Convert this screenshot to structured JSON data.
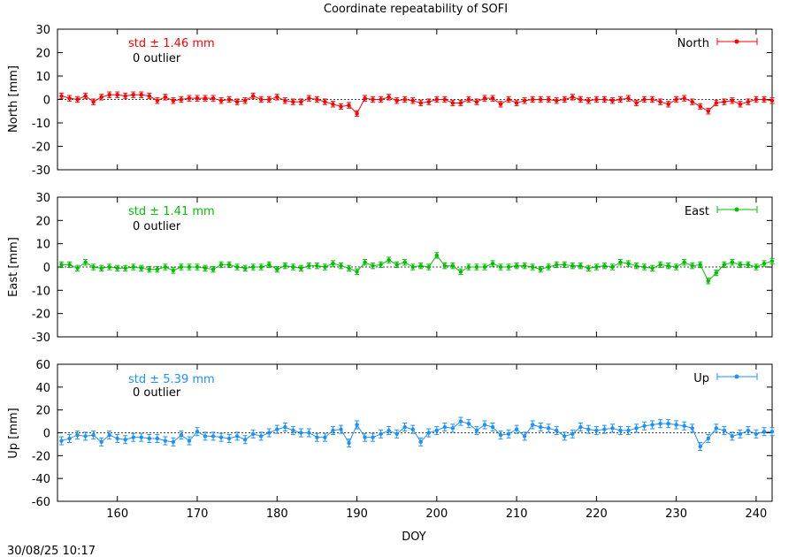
{
  "title": "Coordinate repeatability of SOFI",
  "timestamp": "30/08/25 10:17",
  "chart_data": [
    {
      "type": "line",
      "name": "north",
      "ylabel": "North [mm]",
      "xlabel": "",
      "legend": "North",
      "legend_position": "top-right",
      "color": "#ff0000",
      "std_label": "std ± 1.46 mm",
      "outlier_label": "0 outlier",
      "xlim": [
        152.5,
        242
      ],
      "ylim": [
        -30,
        30
      ],
      "yticks": [
        -30,
        -20,
        -10,
        0,
        10,
        20,
        30
      ],
      "xticks": [
        160,
        170,
        180,
        190,
        200,
        210,
        220,
        230,
        240
      ],
      "grid": false,
      "zero_line": true,
      "x": [
        153,
        154,
        155,
        156,
        157,
        158,
        159,
        160,
        161,
        162,
        163,
        164,
        165,
        166,
        167,
        168,
        169,
        170,
        171,
        172,
        173,
        174,
        175,
        176,
        177,
        178,
        179,
        180,
        181,
        182,
        183,
        184,
        185,
        186,
        187,
        188,
        189,
        190,
        191,
        192,
        193,
        194,
        195,
        196,
        197,
        198,
        199,
        200,
        201,
        202,
        203,
        204,
        205,
        206,
        207,
        208,
        209,
        210,
        211,
        212,
        213,
        214,
        215,
        216,
        217,
        218,
        219,
        220,
        221,
        222,
        223,
        224,
        225,
        226,
        227,
        228,
        229,
        230,
        231,
        232,
        233,
        234,
        235,
        236,
        237,
        238,
        239,
        240,
        241,
        242
      ],
      "y": [
        1.5,
        0.5,
        0,
        1.5,
        -1,
        1,
        2,
        2,
        1.5,
        2,
        2,
        1.5,
        -0.5,
        1,
        -0.5,
        0,
        0.5,
        0.5,
        0.5,
        0.5,
        -0.5,
        0,
        -1,
        -0.5,
        1.5,
        0,
        0,
        1,
        -0.5,
        -1,
        -1,
        0.5,
        0,
        -1,
        -2,
        -3,
        -2.5,
        -6,
        0.5,
        0,
        0,
        1,
        -0.5,
        0,
        -0.5,
        -1.5,
        -1,
        0,
        0,
        -1.5,
        -1.5,
        0,
        -1,
        0.5,
        0.5,
        -2,
        0,
        -1.5,
        -0.5,
        0,
        0,
        0,
        -0.5,
        0,
        1,
        0,
        -0.5,
        0,
        0,
        -0.5,
        0,
        0.5,
        -1.5,
        0,
        0,
        -1,
        -2,
        0,
        0.5,
        -1,
        -3,
        -5,
        -1.5,
        -1,
        -0.5,
        -2,
        -1,
        0,
        0,
        -0.5
      ],
      "err": 1.2
    },
    {
      "type": "line",
      "name": "east",
      "ylabel": "East [mm]",
      "xlabel": "",
      "legend": "East",
      "legend_position": "top-right",
      "color": "#00c000",
      "std_label": "std ± 1.41 mm",
      "outlier_label": "0 outlier",
      "xlim": [
        152.5,
        242
      ],
      "ylim": [
        -30,
        30
      ],
      "yticks": [
        -30,
        -20,
        -10,
        0,
        10,
        20,
        30
      ],
      "xticks": [
        160,
        170,
        180,
        190,
        200,
        210,
        220,
        230,
        240
      ],
      "grid": false,
      "zero_line": true,
      "x": [
        153,
        154,
        155,
        156,
        157,
        158,
        159,
        160,
        161,
        162,
        163,
        164,
        165,
        166,
        167,
        168,
        169,
        170,
        171,
        172,
        173,
        174,
        175,
        176,
        177,
        178,
        179,
        180,
        181,
        182,
        183,
        184,
        185,
        186,
        187,
        188,
        189,
        190,
        191,
        192,
        193,
        194,
        195,
        196,
        197,
        198,
        199,
        200,
        201,
        202,
        203,
        204,
        205,
        206,
        207,
        208,
        209,
        210,
        211,
        212,
        213,
        214,
        215,
        216,
        217,
        218,
        219,
        220,
        221,
        222,
        223,
        224,
        225,
        226,
        227,
        228,
        229,
        230,
        231,
        232,
        233,
        234,
        235,
        236,
        237,
        238,
        239,
        240,
        241,
        242
      ],
      "y": [
        1,
        1,
        -0.5,
        2,
        0,
        -0.5,
        0,
        -0.5,
        -0.5,
        0,
        -0.5,
        -1,
        -1,
        0,
        -1.5,
        0,
        0,
        0,
        -0.5,
        -1,
        1,
        1,
        0,
        -0.5,
        0,
        0,
        1,
        -1,
        0.5,
        0,
        -0.5,
        0.5,
        0.5,
        0,
        1.5,
        0.5,
        -0.5,
        -2,
        2,
        0.5,
        1,
        3,
        1,
        2,
        0,
        0.5,
        0,
        5,
        0.5,
        0.5,
        -2,
        0,
        0,
        0,
        1.5,
        0,
        0,
        0.5,
        0.5,
        0,
        -1,
        0,
        1,
        1,
        0.5,
        0.5,
        -0.5,
        0,
        0.5,
        0,
        2,
        1.5,
        0.5,
        0,
        -0.5,
        1,
        0.5,
        0,
        2,
        0.5,
        1,
        -6,
        -2.5,
        1,
        2,
        1,
        1,
        0,
        1.5,
        2.5
      ],
      "err": 1.2
    },
    {
      "type": "line",
      "name": "up",
      "ylabel": "Up [mm]",
      "xlabel": "DOY",
      "legend": "Up",
      "legend_position": "top-right",
      "color": "#1e90ff",
      "std_label": "std ± 5.39 mm",
      "outlier_label": "0 outlier",
      "xlim": [
        152.5,
        242
      ],
      "ylim": [
        -60,
        60
      ],
      "yticks": [
        -60,
        -40,
        -20,
        0,
        20,
        40,
        60
      ],
      "xticks": [
        160,
        170,
        180,
        190,
        200,
        210,
        220,
        230,
        240
      ],
      "grid": false,
      "zero_line": true,
      "x": [
        153,
        154,
        155,
        156,
        157,
        158,
        159,
        160,
        161,
        162,
        163,
        164,
        165,
        166,
        167,
        168,
        169,
        170,
        171,
        172,
        173,
        174,
        175,
        176,
        177,
        178,
        179,
        180,
        181,
        182,
        183,
        184,
        185,
        186,
        187,
        188,
        189,
        190,
        191,
        192,
        193,
        194,
        195,
        196,
        197,
        198,
        199,
        200,
        201,
        202,
        203,
        204,
        205,
        206,
        207,
        208,
        209,
        210,
        211,
        212,
        213,
        214,
        215,
        216,
        217,
        218,
        219,
        220,
        221,
        222,
        223,
        224,
        225,
        226,
        227,
        228,
        229,
        230,
        231,
        232,
        233,
        234,
        235,
        236,
        237,
        238,
        239,
        240,
        241,
        242
      ],
      "y": [
        -7,
        -5,
        -2,
        -3,
        -2,
        -8,
        -2,
        -5,
        -6,
        -4,
        -4,
        -5,
        -5,
        -7,
        -8,
        -2,
        -7,
        1,
        -3,
        -3,
        -4,
        -5,
        -3,
        -6,
        -1,
        -3,
        0,
        3,
        5,
        2,
        0,
        0,
        -4,
        -4,
        2,
        3,
        -9,
        7,
        -4,
        -4,
        -1,
        2,
        -1,
        5,
        3,
        -8,
        0,
        2,
        5,
        4,
        10,
        8,
        2,
        7,
        5,
        -2,
        -1,
        3,
        -3,
        7,
        5,
        4,
        2,
        -3,
        -1,
        5,
        3,
        2,
        3,
        4,
        2,
        2,
        4,
        6,
        7,
        8,
        8,
        7,
        6,
        4,
        -12,
        -5,
        4,
        2,
        -3,
        -1,
        2,
        -1,
        1,
        1
      ],
      "err": 3.5
    }
  ]
}
